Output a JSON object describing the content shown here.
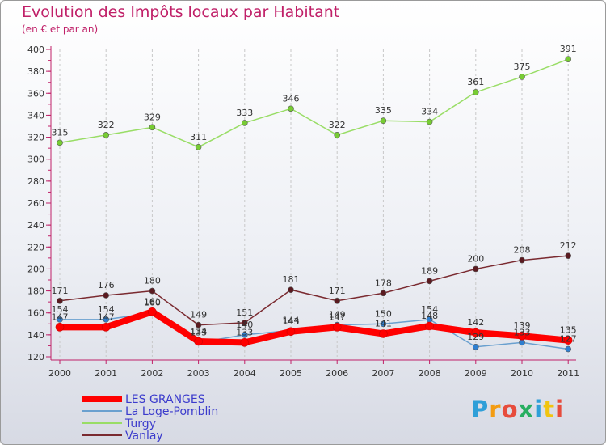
{
  "header": {
    "title": "Evolution des Impôts locaux par Habitant",
    "subtitle": "(en € et par an)"
  },
  "logo": {
    "letters": [
      "P",
      "r",
      "o",
      "x",
      "i",
      "t",
      "i"
    ],
    "colors": [
      "#2f9fd8",
      "#f39c12",
      "#e74c3c",
      "#27ae60",
      "#2f9fd8",
      "#f1c40f",
      "#e74c3c"
    ]
  },
  "chart_data": {
    "type": "line",
    "x": [
      "2000",
      "2001",
      "2002",
      "2003",
      "2004",
      "2005",
      "2006",
      "2007",
      "2008",
      "2009",
      "2010",
      "2011"
    ],
    "ylim": [
      120,
      400
    ],
    "yticks": [
      120,
      140,
      160,
      180,
      200,
      220,
      240,
      260,
      280,
      300,
      320,
      340,
      360,
      380,
      400
    ],
    "grid": "vertical dashed",
    "legend_position": "bottom-left",
    "series": [
      {
        "name": "LES GRANGES",
        "color": "#ff0000",
        "marker": "#ff0000",
        "values": [
          147,
          147,
          161,
          134,
          133,
          143,
          147,
          141,
          148,
          142,
          139,
          135
        ],
        "labels": [
          "147",
          "147",
          "161",
          "134",
          "133",
          "143",
          "147",
          "141",
          "148",
          "142",
          "139",
          "135"
        ]
      },
      {
        "name": "La Loge-Pomblin",
        "color": "#6aa0cf",
        "marker": "#2f7fd0",
        "values": [
          154,
          154,
          160,
          133,
          140,
          144,
          149,
          150,
          154,
          129,
          133,
          127
        ],
        "labels": [
          "154",
          "154",
          "160",
          "133",
          "140",
          "144",
          "149",
          "150",
          "154",
          "129",
          "133",
          "127"
        ]
      },
      {
        "name": "Turgy",
        "color": "#99dd66",
        "marker": "#77cc33",
        "values": [
          315,
          322,
          329,
          311,
          333,
          346,
          322,
          335,
          334,
          361,
          375,
          391
        ],
        "labels": [
          "315",
          "322",
          "329",
          "311",
          "333",
          "346",
          "322",
          "335",
          "334",
          "361",
          "375",
          "391"
        ]
      },
      {
        "name": "Vanlay",
        "color": "#7a2a30",
        "marker": "#5a1a20",
        "values": [
          171,
          176,
          180,
          149,
          151,
          181,
          171,
          178,
          189,
          200,
          208,
          212
        ],
        "labels": [
          "171",
          "176",
          "180",
          "149",
          "151",
          "181",
          "171",
          "178",
          "189",
          "200",
          "208",
          "212"
        ]
      }
    ]
  }
}
